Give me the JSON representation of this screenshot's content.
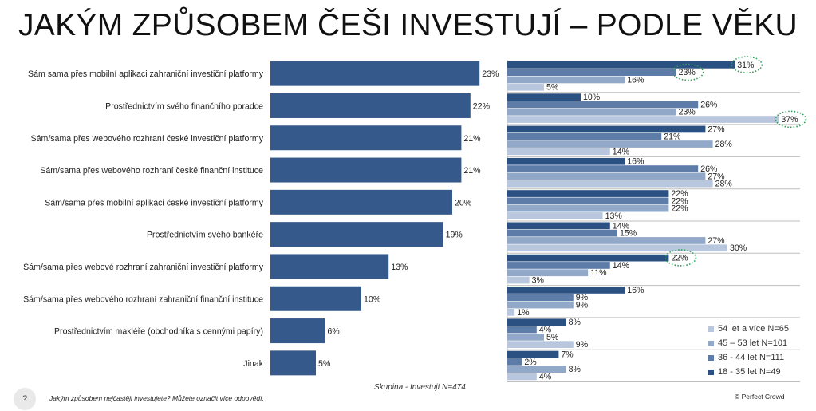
{
  "title": "JAKÝM ZPŮSOBEM ČEŠI INVESTUJÍ – PODLE VĚKU",
  "footer": {
    "question_mark": "?",
    "question": "Jakým způsobem nejčastěji investujete?  Můžete označit více odpovědí.",
    "sample": "Skupina - Investují N=474",
    "copyright": "© Perfect Crowd"
  },
  "legend": [
    {
      "label": "54 let a více N=65",
      "color": "#b8c7dd"
    },
    {
      "label": "45 – 53 let N=101",
      "color": "#92a8c8"
    },
    {
      "label": "36 - 44 let N=111",
      "color": "#5e7ca8"
    },
    {
      "label": "18 - 35 let N=49",
      "color": "#2b5082"
    }
  ],
  "chart_data": [
    {
      "type": "bar",
      "orientation": "horizontal",
      "categories": [
        "Sám sama přes mobilní aplikaci zahraniční investiční platformy",
        "Prostřednictvím svého finančního poradce",
        "Sám/sama přes webového rozhraní české investiční platformy",
        "Sám/sama přes webového rozhraní české finanční instituce",
        "Sám/sama přes mobilní aplikaci české investiční platformy",
        "Prostřednictvím svého bankéře",
        "Sám/sama přes webové rozhraní zahraniční investiční platformy",
        "Sám/sama přes webového rozhraní zahraniční finanční instituce",
        "Prostřednictvím makléře (obchodníka s cennými papíry)",
        "Jinak"
      ],
      "values": [
        23,
        22,
        21,
        21,
        20,
        19,
        13,
        10,
        6,
        5
      ],
      "value_labels": [
        "23%",
        "22%",
        "21%",
        "21%",
        "20%",
        "19%",
        "13%",
        "10%",
        "6%",
        "5%"
      ],
      "color": "#36598b"
    },
    {
      "type": "bar",
      "orientation": "horizontal",
      "categories": [
        "Sám sama přes mobilní aplikaci zahraniční investiční platformy",
        "Prostřednictvím svého finančního poradce",
        "Sám/sama přes webového rozhraní české investiční platformy",
        "Sám/sama přes webového rozhraní české finanční instituce",
        "Sám/sama přes mobilní aplikaci české investiční platformy",
        "Prostřednictvím svého bankéře",
        "Sám/sama přes webové rozhraní zahraniční investiční platformy",
        "Sám/sama přes webového rozhraní zahraniční finanční instituce",
        "Prostřednictvím makléře (obchodníka s cennými papíry)",
        "Jinak"
      ],
      "series": [
        {
          "name": "18 - 35 let N=49",
          "color": "#2b5082",
          "values": [
            31,
            10,
            27,
            16,
            22,
            14,
            22,
            16,
            8,
            7
          ],
          "labels": [
            "31%",
            "10%",
            "27%",
            "16%",
            "22%",
            "14%",
            "22%",
            "16%",
            "8%",
            "7%"
          ]
        },
        {
          "name": "36 - 44 let N=111",
          "color": "#5e7ca8",
          "values": [
            23,
            26,
            21,
            26,
            22,
            15,
            14,
            9,
            4,
            2
          ],
          "labels": [
            "23%",
            "26%",
            "21%",
            "26%",
            "22%",
            "15%",
            "14%",
            "9%",
            "4%",
            "2%"
          ]
        },
        {
          "name": "45 – 53 let N=101",
          "color": "#92a8c8",
          "values": [
            16,
            23,
            28,
            27,
            22,
            27,
            11,
            9,
            5,
            8
          ],
          "labels": [
            "16%",
            "23%",
            "28%",
            "27%",
            "22%",
            "27%",
            "11%",
            "9%",
            "5%",
            "8%"
          ]
        },
        {
          "name": "54 let a více N=65",
          "color": "#b8c7dd",
          "values": [
            5,
            37,
            14,
            28,
            13,
            30,
            3,
            1,
            9,
            4
          ],
          "labels": [
            "5%",
            "37%",
            "14%",
            "28%",
            "13%",
            "30%",
            "3%",
            "1%",
            "9%",
            "4%"
          ]
        }
      ],
      "highlighted": [
        {
          "row": 0,
          "series": 0
        },
        {
          "row": 0,
          "series": 1
        },
        {
          "row": 1,
          "series": 3
        },
        {
          "row": 6,
          "series": 0
        }
      ]
    }
  ]
}
